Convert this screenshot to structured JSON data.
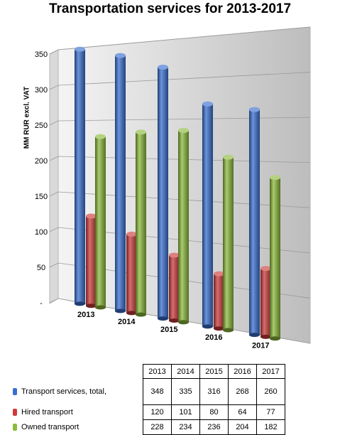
{
  "chart_data": {
    "type": "bar",
    "title": "Transportation services for 2013-2017",
    "ylabel": "MM RUR excl. VAT",
    "ylim": [
      0,
      350
    ],
    "yticks": [
      "-",
      "50",
      "100",
      "150",
      "200",
      "250",
      "300",
      "350"
    ],
    "categories": [
      "2013",
      "2014",
      "2015",
      "2016",
      "2017"
    ],
    "series": [
      {
        "name": "Transport services, total,",
        "color": "#3a6fd0",
        "values": [
          348,
          335,
          316,
          268,
          260
        ]
      },
      {
        "name": "Hired transport",
        "color": "#cc3b3b",
        "values": [
          120,
          101,
          80,
          64,
          77
        ]
      },
      {
        "name": "Owned transport",
        "color": "#8cba3c",
        "values": [
          228,
          234,
          236,
          204,
          182
        ]
      }
    ],
    "grid": true,
    "legend": "table below chart"
  }
}
